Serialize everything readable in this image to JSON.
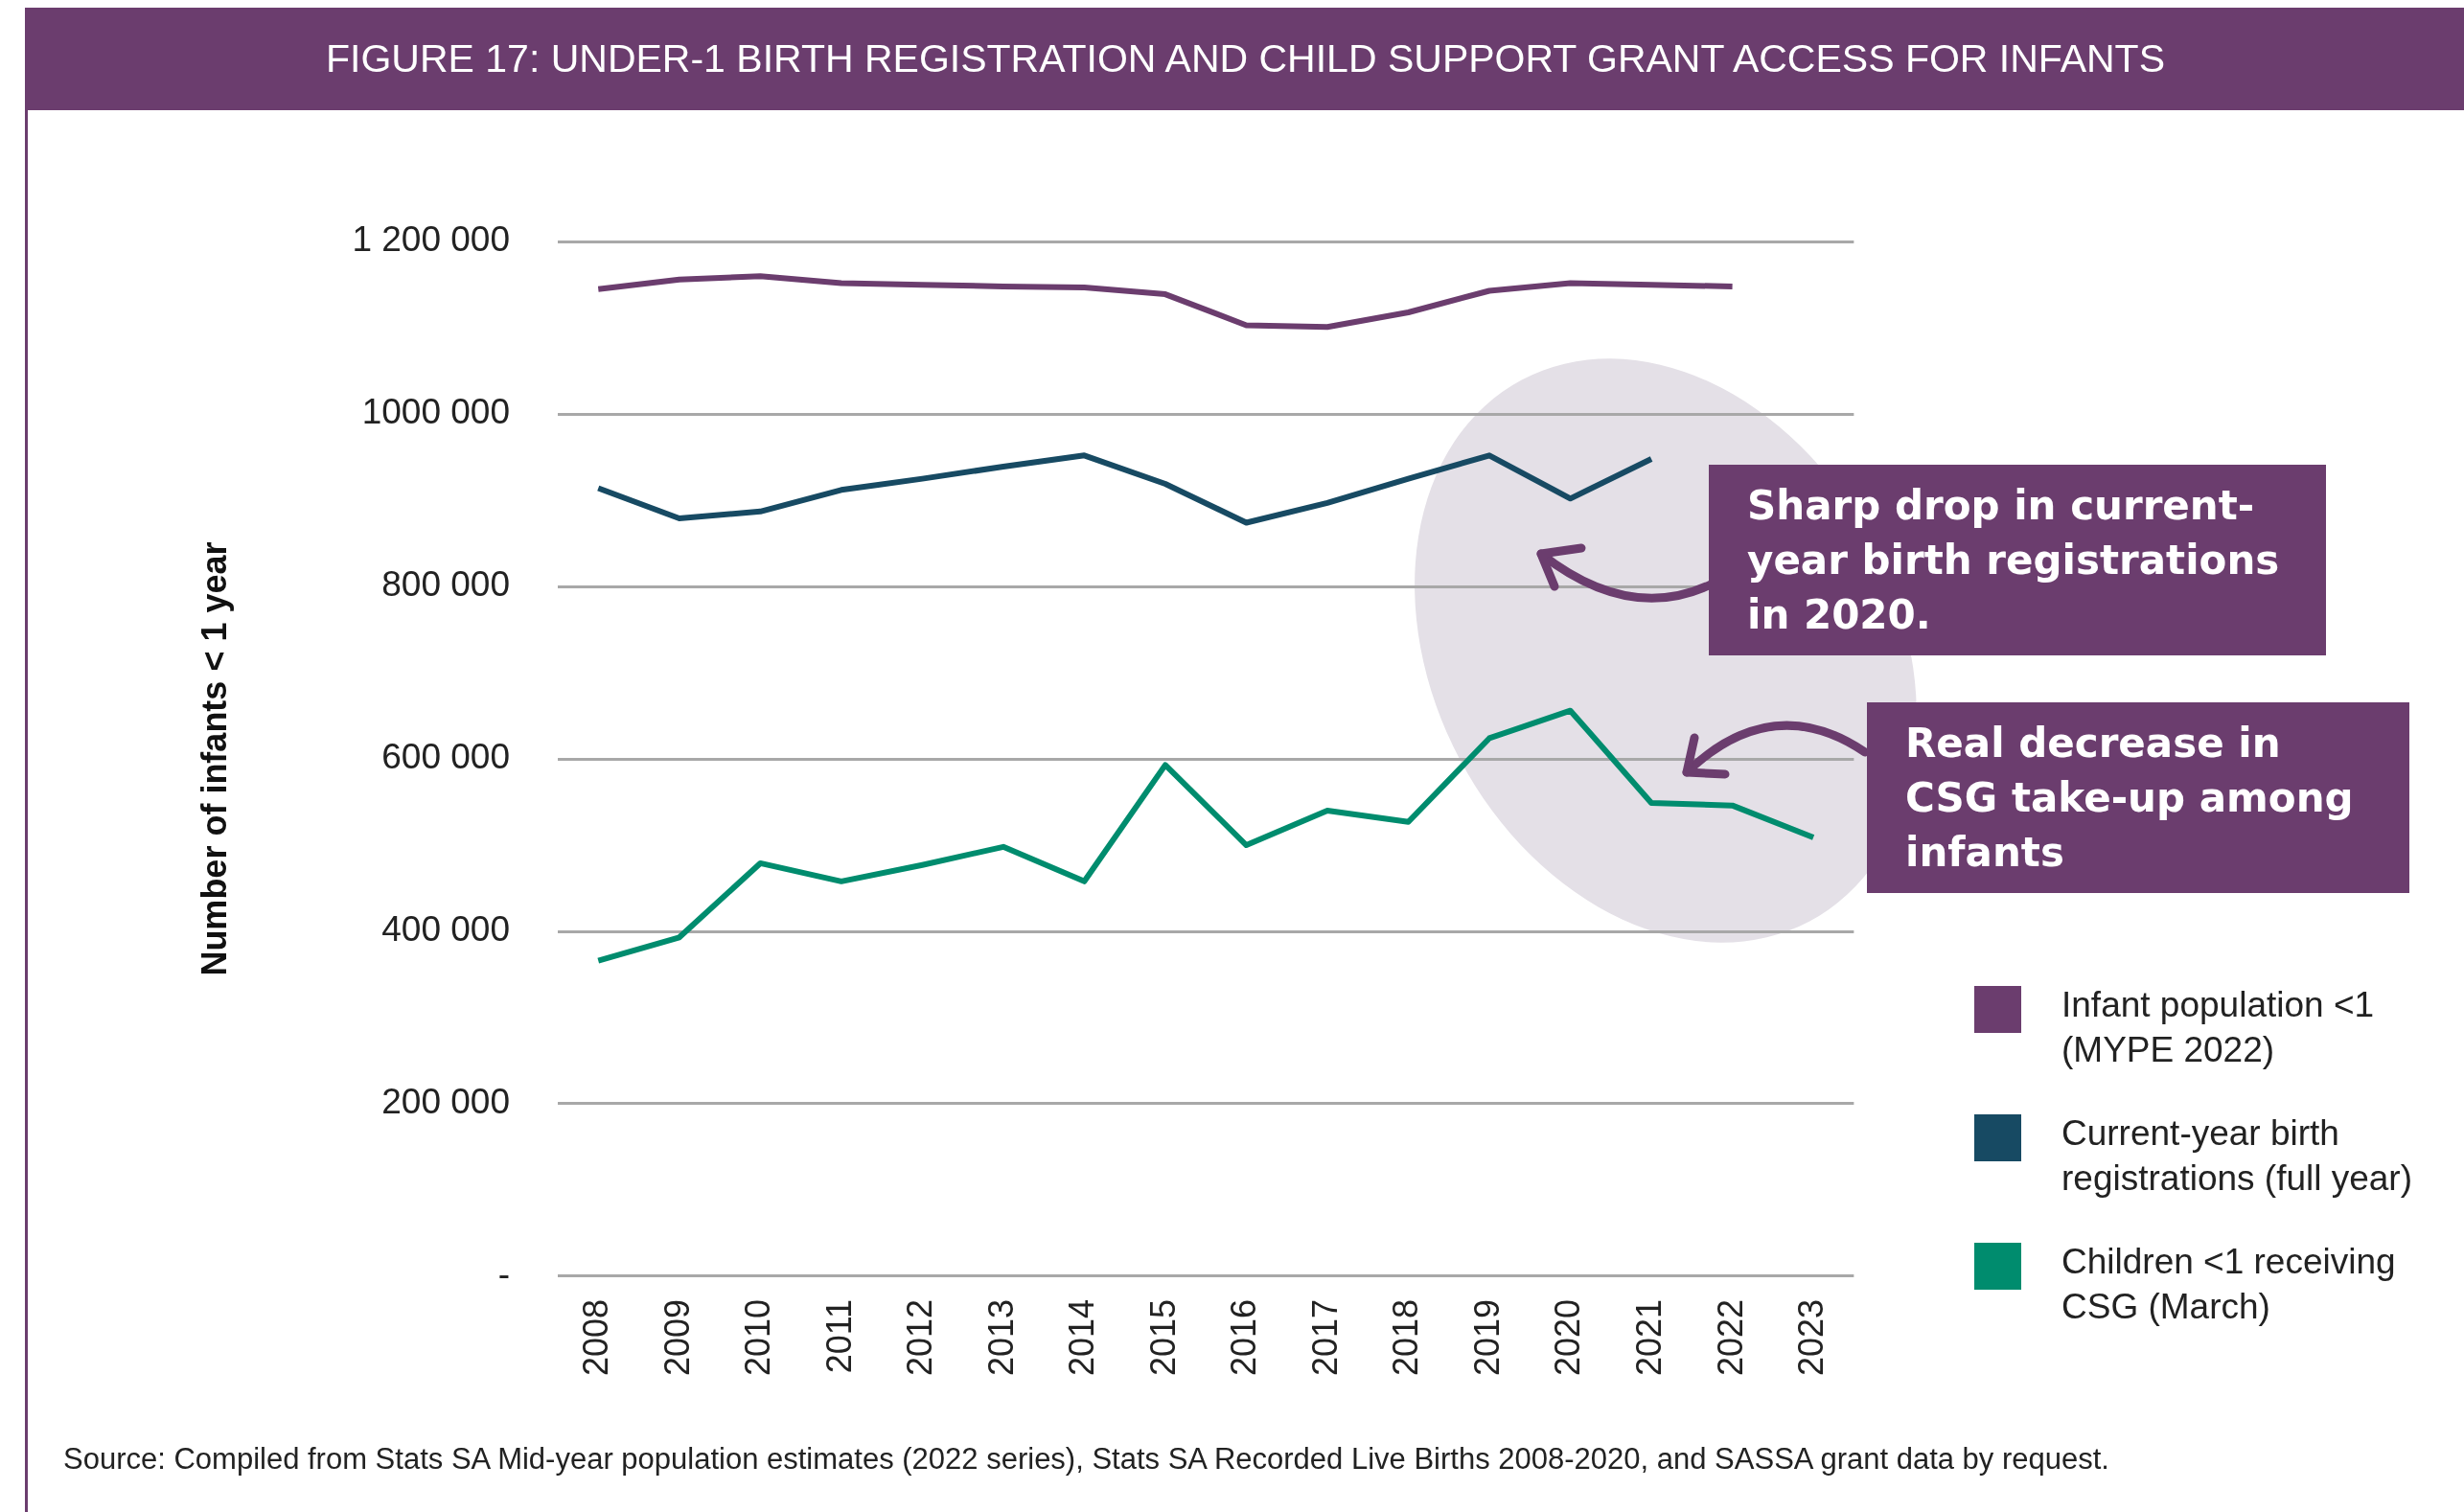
{
  "chart_data": {
    "type": "line",
    "title": "FIGURE 17: UNDER-1 BIRTH REGISTRATION AND CHILD SUPPORT GRANT ACCESS FOR INFANTS",
    "ylabel": "Number of infants < 1 year",
    "categories": [
      "2008",
      "2009",
      "2010",
      "2011",
      "2012",
      "2013",
      "2014",
      "2015",
      "2016",
      "2017",
      "2018",
      "2019",
      "2020",
      "2021",
      "2022",
      "2023"
    ],
    "series": [
      {
        "name": "Infant population <1 (MYPE 2022)",
        "color": "#6b3d6e",
        "values": [
          1145000,
          1156000,
          1160000,
          1152000,
          1150000,
          1148000,
          1147000,
          1139000,
          1103000,
          1101000,
          1118000,
          1143000,
          1152000,
          1150000,
          1148000,
          null
        ]
      },
      {
        "name": "Current-year birth registrations (full year)",
        "color": "#174a63",
        "values": [
          914000,
          879000,
          887000,
          912000,
          925000,
          939000,
          952000,
          919000,
          874000,
          897000,
          925000,
          952000,
          902000,
          948000,
          null,
          null
        ]
      },
      {
        "name": "Children <1 receiving CSG (March)",
        "color": "#008c6e",
        "values": [
          366000,
          393000,
          479000,
          458000,
          477000,
          498000,
          458000,
          593000,
          500000,
          540000,
          527000,
          624000,
          656000,
          549000,
          546000,
          509000
        ]
      }
    ],
    "ylim": [
      0,
      1200000
    ],
    "yticks": [
      {
        "value": 0,
        "label": "-"
      },
      {
        "value": 200000,
        "label": "200 000"
      },
      {
        "value": 400000,
        "label": "400 000"
      },
      {
        "value": 600000,
        "label": "600 000"
      },
      {
        "value": 800000,
        "label": "800 000"
      },
      {
        "value": 1000000,
        "label": "1000 000"
      },
      {
        "value": 1200000,
        "label": "1 200 000"
      }
    ],
    "grid": "y",
    "legend": "right",
    "marker": "none",
    "line_style": "solid",
    "annotations": [
      "Sharp drop in current-year birth registrations in 2020.",
      "Real decrease in CSG take-up among infants",
      "Source: Compiled from Stats SA Mid-year population estimates (2022 series), Stats SA Recorded Live Births 2008-2020, and SASSA grant data by request."
    ]
  }
}
